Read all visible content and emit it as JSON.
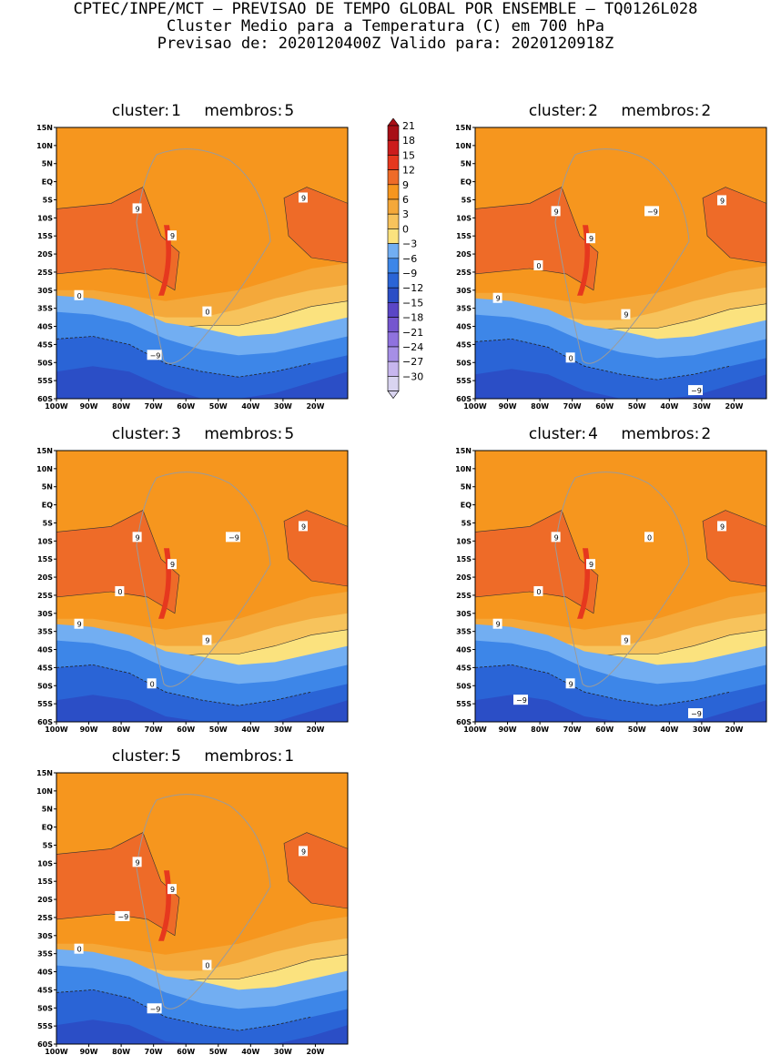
{
  "header": {
    "line1": "CPTEC/INPE/MCT – PREVISAO DE TEMPO GLOBAL POR ENSEMBLE – TQ0126L028",
    "line2": "Cluster Medio para a Temperatura (C) em 700 hPa",
    "line3": "Previsao de: 2020120400Z   Valido para: 2020120918Z"
  },
  "colors": {
    "c_m30": "#d9d4f0",
    "c_m27": "#c7b6ee",
    "c_m24": "#a68fe6",
    "c_m21": "#8f72de",
    "c_m18": "#7556cf",
    "c_m15": "#5a46c6",
    "c_m12": "#2b4ec6",
    "c_m9": "#2a64d6",
    "c_m6": "#3d86e8",
    "c_m3": "#72aef2",
    "c_0": "#fbe27e",
    "c_3": "#f7c35c",
    "c_6": "#f4a83a",
    "c_9": "#f6961e",
    "c_12": "#ee6b28",
    "c_15": "#e6381e",
    "c_18": "#cc1c1c",
    "c_21": "#a80f16"
  },
  "colorbar": {
    "labels": [
      "21",
      "18",
      "15",
      "12",
      "9",
      "6",
      "3",
      "0",
      "−3",
      "−6",
      "−9",
      "−12",
      "−15",
      "−18",
      "−21",
      "−24",
      "−27",
      "−30"
    ],
    "fills": [
      "#a80f16",
      "#cc1c1c",
      "#e6381e",
      "#ee6b28",
      "#f6961e",
      "#f4a83a",
      "#f7c35c",
      "#fbe27e",
      "#72aef2",
      "#3d86e8",
      "#2a64d6",
      "#2b4ec6",
      "#5a46c6",
      "#7556cf",
      "#8f72de",
      "#a68fe6",
      "#c7b6ee",
      "#d9d4f0"
    ]
  },
  "axes": {
    "lat_ticks": [
      "15N",
      "10N",
      "5N",
      "EQ",
      "5S",
      "10S",
      "15S",
      "20S",
      "25S",
      "30S",
      "35S",
      "40S",
      "45S",
      "50S",
      "55S",
      "60S"
    ],
    "lon_ticks": [
      "100W",
      "90W",
      "80W",
      "70W",
      "60W",
      "50W",
      "40W",
      "30W",
      "20W"
    ]
  },
  "panels": [
    {
      "cluster_label": "cluster:",
      "cluster": "1",
      "members_label": "membros:",
      "members": "5",
      "contour_labels": [
        "9",
        "9",
        "9",
        "0",
        "0",
        "−9"
      ]
    },
    {
      "cluster_label": "cluster:",
      "cluster": "2",
      "members_label": "membros:",
      "members": "2",
      "contour_labels": [
        "9",
        "9",
        "9",
        "9",
        "9",
        "0",
        "0",
        "−9",
        "−9"
      ]
    },
    {
      "cluster_label": "cluster:",
      "cluster": "3",
      "members_label": "membros:",
      "members": "5",
      "contour_labels": [
        "9",
        "9",
        "9",
        "9",
        "9",
        "0",
        "0",
        "−9"
      ]
    },
    {
      "cluster_label": "cluster:",
      "cluster": "4",
      "members_label": "membros:",
      "members": "2",
      "contour_labels": [
        "9",
        "9",
        "9",
        "9",
        "9",
        "9",
        "0",
        "0",
        "−9",
        "−9"
      ]
    },
    {
      "cluster_label": "cluster:",
      "cluster": "5",
      "members_label": "membros:",
      "members": "1",
      "contour_labels": [
        "9",
        "9",
        "9",
        "0",
        "0",
        "−9",
        "−9"
      ]
    }
  ]
}
